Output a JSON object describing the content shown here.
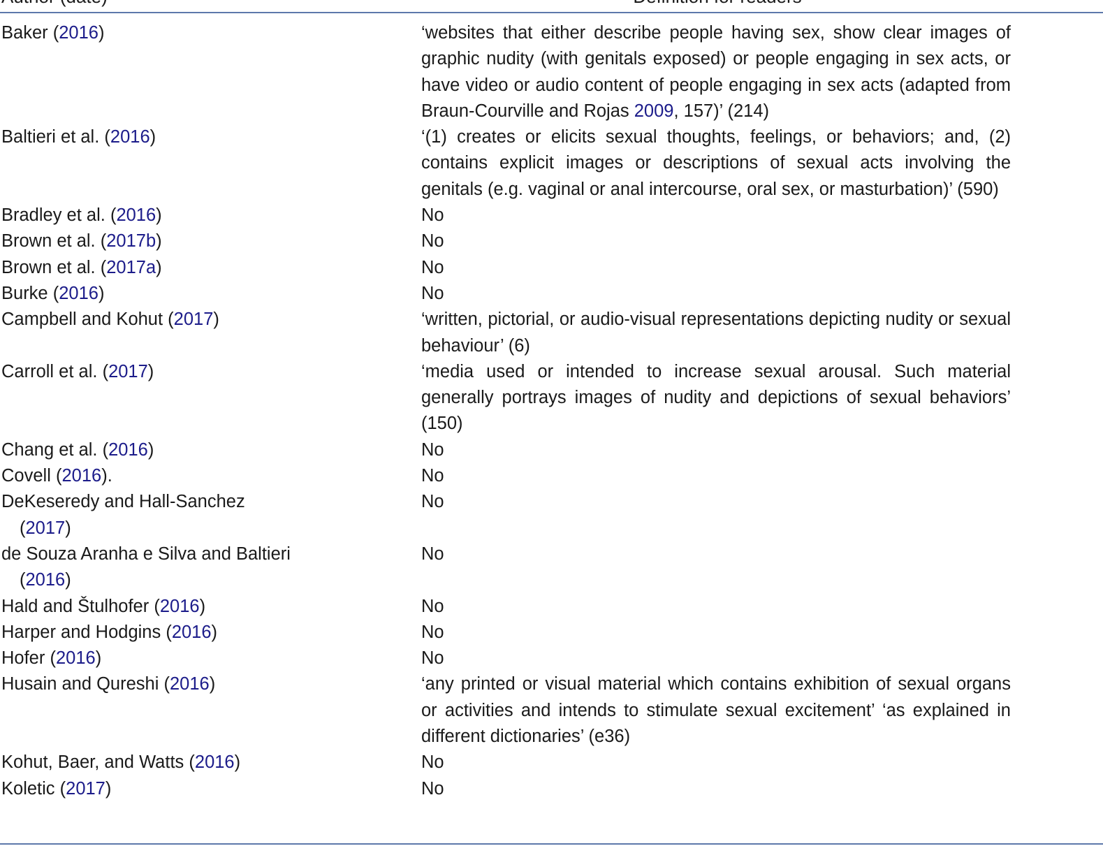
{
  "header": {
    "author_col": "Author (date)",
    "definition_col": "Definition for readers"
  },
  "colors": {
    "rule": "#5d78ab",
    "link": "#1c1c8a"
  },
  "rows": [
    {
      "author": "Baker",
      "year": "2016",
      "suffix": ")",
      "definition": [
        {
          "t": "‘websites that either describe people having sex, show clear images of graphic nudity (with genitals exposed) or people engaging in sex acts, or have video or audio content of people engaging in sex acts (adapted from Braun-Courville and Rojas "
        },
        {
          "t": "2009",
          "link": true
        },
        {
          "t": ", 157)’ (214)"
        }
      ]
    },
    {
      "author": "Baltieri et al.",
      "year": "2016",
      "suffix": ")",
      "definition": [
        {
          "t": "‘(1) creates or elicits sexual thoughts, feelings, or behaviors; and, (2) contains explicit images or descriptions of sexual acts involving the genitals (e.g. vaginal or anal intercourse, oral sex, or masturbation)’ (590)"
        }
      ]
    },
    {
      "author": "Bradley et al.",
      "year": "2016",
      "suffix": ")",
      "definition": [
        {
          "t": "No"
        }
      ]
    },
    {
      "author": "Brown et al.",
      "year": "2017b",
      "suffix": ")",
      "definition": [
        {
          "t": "No"
        }
      ]
    },
    {
      "author": "Brown et al.",
      "year": "2017a",
      "suffix": ")",
      "definition": [
        {
          "t": "No"
        }
      ]
    },
    {
      "author": "Burke",
      "year": "2016",
      "suffix": ")",
      "definition": [
        {
          "t": "No"
        }
      ]
    },
    {
      "author": "Campbell and Kohut",
      "year": "2017",
      "suffix": ")",
      "definition": [
        {
          "t": "‘written, pictorial, or audio-visual representations depicting nudity or sexual behaviour’ (6)"
        }
      ]
    },
    {
      "author": "Carroll et al.",
      "year": "2017",
      "suffix": ")",
      "definition": [
        {
          "t": "‘media used or intended to increase sexual arousal. Such material generally portrays images of nudity and depictions of sexual behaviors’ (150)"
        }
      ]
    },
    {
      "author": "Chang et al.",
      "year": "2016",
      "suffix": ")",
      "definition": [
        {
          "t": "No"
        }
      ]
    },
    {
      "author": "Covell",
      "year": "2016",
      "suffix": ").",
      "definition": [
        {
          "t": "No"
        }
      ]
    },
    {
      "author": "DeKeseredy and Hall-Sanchez",
      "year": "2017",
      "suffix": ")",
      "definition": [
        {
          "t": "No"
        }
      ]
    },
    {
      "author": "de Souza Aranha e Silva and Baltieri",
      "year": "2016",
      "suffix": ")",
      "definition": [
        {
          "t": "No"
        }
      ]
    },
    {
      "author": "Hald and Štulhofer",
      "year": "2016",
      "suffix": ")",
      "definition": [
        {
          "t": "No"
        }
      ]
    },
    {
      "author": "Harper and Hodgins",
      "year": "2016",
      "suffix": ")",
      "definition": [
        {
          "t": "No"
        }
      ]
    },
    {
      "author": "Hofer",
      "year": "2016",
      "suffix": ")",
      "definition": [
        {
          "t": "No"
        }
      ]
    },
    {
      "author": "Husain and Qureshi",
      "year": "2016",
      "suffix": ")",
      "definition": [
        {
          "t": "‘any printed or visual material which contains exhibition of sexual organs or activities and intends to stimulate sexual excitement’ ‘as explained in different dictionaries’ (e36)"
        }
      ]
    },
    {
      "author": "Kohut, Baer, and Watts",
      "year": "2016",
      "suffix": ")",
      "definition": [
        {
          "t": "No"
        }
      ]
    },
    {
      "author": "Koletic",
      "year": "2017",
      "suffix": ")",
      "definition": [
        {
          "t": "No"
        }
      ]
    }
  ]
}
